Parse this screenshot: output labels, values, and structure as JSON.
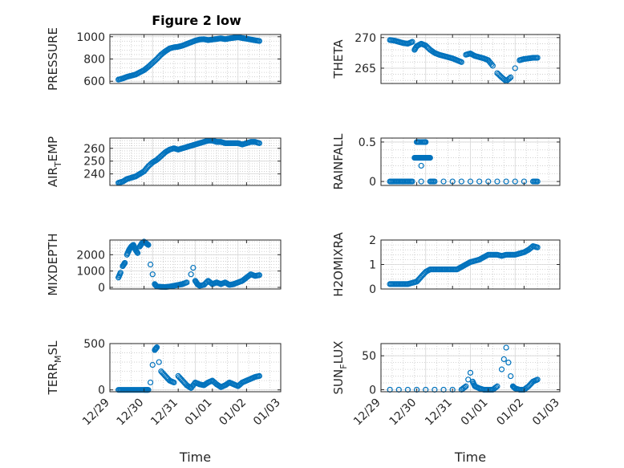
{
  "figure_title": "Figure 2 low",
  "colors": {
    "marker": "#0072BD",
    "axis": "#262626",
    "grid": "#c8c8c8"
  },
  "chart_data": [
    {
      "type": "scatter",
      "ylabel": "PRESSURE",
      "title": "Figure 2 low",
      "xlim": [
        0,
        4
      ],
      "ylim": [
        580,
        1020
      ],
      "yticks": [
        600,
        800,
        1000
      ],
      "grid": true,
      "xticklabels": [],
      "x": [
        0.2,
        0.3,
        0.4,
        0.5,
        0.6,
        0.7,
        0.8,
        0.9,
        1.0,
        1.1,
        1.2,
        1.3,
        1.4,
        1.5,
        1.6,
        1.7,
        1.8,
        1.9,
        2.0,
        2.1,
        2.2,
        2.3,
        2.4,
        2.5,
        2.6,
        2.7,
        2.8,
        2.9,
        3.0,
        3.1,
        3.2,
        3.3,
        3.4,
        3.5
      ],
      "y": [
        615,
        625,
        640,
        650,
        660,
        680,
        700,
        730,
        765,
        800,
        840,
        870,
        895,
        905,
        910,
        920,
        935,
        950,
        965,
        975,
        978,
        970,
        975,
        980,
        985,
        978,
        985,
        990,
        995,
        988,
        982,
        975,
        968,
        962
      ]
    },
    {
      "type": "scatter",
      "ylabel": "THETA",
      "xlim": [
        0,
        4
      ],
      "ylim": [
        262.5,
        270.5
      ],
      "yticks": [
        265,
        270
      ],
      "grid": true,
      "xticklabels": [],
      "x": [
        0.2,
        0.3,
        0.4,
        0.5,
        0.6,
        0.7,
        0.75,
        0.8,
        0.9,
        1.0,
        1.1,
        1.2,
        1.3,
        1.4,
        1.5,
        1.6,
        1.7,
        1.8,
        1.9,
        2.0,
        2.1,
        2.2,
        2.3,
        2.4,
        2.5,
        2.6,
        2.7,
        2.8,
        2.9,
        3.0,
        3.1,
        3.2,
        3.3,
        3.4,
        3.5
      ],
      "y": [
        269.6,
        269.5,
        269.3,
        269.1,
        269.0,
        269.3,
        268.0,
        268.6,
        269.0,
        268.7,
        268.0,
        267.5,
        267.2,
        267.0,
        266.8,
        266.6,
        266.3,
        266.0,
        267.2,
        267.4,
        267.0,
        266.8,
        266.6,
        266.3,
        265.4,
        264.2,
        263.5,
        262.9,
        263.5,
        265.0,
        266.3,
        266.5,
        266.6,
        266.7,
        266.7
      ]
    },
    {
      "type": "scatter",
      "ylabel": "AIR_TEMP",
      "xlim": [
        0,
        4
      ],
      "ylim": [
        231,
        268
      ],
      "yticks": [
        240,
        250,
        260
      ],
      "grid": true,
      "xticklabels": [],
      "x": [
        0.2,
        0.3,
        0.4,
        0.5,
        0.6,
        0.7,
        0.8,
        0.9,
        1.0,
        1.1,
        1.2,
        1.3,
        1.4,
        1.5,
        1.6,
        1.7,
        1.8,
        1.9,
        2.0,
        2.1,
        2.2,
        2.3,
        2.4,
        2.5,
        2.6,
        2.7,
        2.8,
        2.9,
        3.0,
        3.1,
        3.2,
        3.3,
        3.4,
        3.5
      ],
      "y": [
        233,
        234,
        236,
        237,
        238,
        240,
        242,
        246,
        249,
        251,
        254,
        257,
        259,
        260,
        259,
        260,
        261,
        262,
        263,
        264,
        265,
        266,
        266,
        265,
        265,
        264,
        264,
        264,
        264,
        263,
        264,
        265,
        265,
        264
      ]
    },
    {
      "type": "scatter",
      "ylabel": "RAINFALL",
      "xlim": [
        0,
        4
      ],
      "ylim": [
        -0.05,
        0.55
      ],
      "yticks": [
        0,
        0.5
      ],
      "grid": true,
      "xticklabels": [],
      "x": [
        0.2,
        0.3,
        0.4,
        0.5,
        0.6,
        0.7,
        0.75,
        0.8,
        0.85,
        0.9,
        0.95,
        1.0,
        1.05,
        1.1,
        0.8,
        0.85,
        0.95,
        1.0,
        0.9,
        0.9,
        1.1,
        1.2,
        1.4,
        1.6,
        1.8,
        2.0,
        2.2,
        2.4,
        2.6,
        2.8,
        3.0,
        3.2,
        3.4,
        3.5
      ],
      "y": [
        0,
        0,
        0,
        0,
        0,
        0,
        0.3,
        0.3,
        0.3,
        0.3,
        0.3,
        0.3,
        0.3,
        0.3,
        0.5,
        0.5,
        0.5,
        0.5,
        0.2,
        0,
        0,
        0,
        0,
        0,
        0,
        0,
        0,
        0,
        0,
        0,
        0,
        0,
        0,
        0
      ]
    },
    {
      "type": "scatter",
      "ylabel": "MIXDEPTH",
      "xlim": [
        0,
        4
      ],
      "ylim": [
        -100,
        2900
      ],
      "yticks": [
        0,
        1000,
        2000
      ],
      "grid": true,
      "xticklabels": [],
      "x": [
        0.2,
        0.25,
        0.3,
        0.35,
        0.4,
        0.45,
        0.5,
        0.55,
        0.6,
        0.65,
        0.7,
        0.75,
        0.8,
        0.85,
        0.9,
        0.95,
        1.0,
        1.05,
        1.1,
        1.2,
        1.3,
        1.4,
        1.5,
        1.6,
        1.7,
        1.8,
        1.9,
        1.95,
        2.0,
        2.05,
        2.1,
        2.2,
        2.3,
        2.4,
        2.5,
        2.6,
        2.7,
        2.8,
        2.9,
        3.0,
        3.1,
        3.2,
        3.3,
        3.4,
        3.5
      ],
      "y": [
        600,
        900,
        1300,
        1500,
        2000,
        2300,
        2500,
        2600,
        2300,
        2100,
        2500,
        2700,
        2800,
        2700,
        2600,
        1400,
        800,
        200,
        50,
        30,
        20,
        50,
        100,
        150,
        200,
        300,
        800,
        1200,
        400,
        200,
        100,
        150,
        400,
        200,
        300,
        200,
        300,
        150,
        200,
        300,
        400,
        600,
        800,
        700,
        750
      ]
    },
    {
      "type": "scatter",
      "ylabel": "H2OMIXRA",
      "xlim": [
        0,
        4
      ],
      "ylim": [
        0,
        2
      ],
      "yticks": [
        0,
        1,
        2
      ],
      "grid": true,
      "xticklabels": [],
      "x": [
        0.2,
        0.3,
        0.4,
        0.5,
        0.6,
        0.7,
        0.8,
        0.9,
        1.0,
        1.1,
        1.2,
        1.3,
        1.4,
        1.5,
        1.6,
        1.7,
        1.8,
        1.9,
        2.0,
        2.1,
        2.2,
        2.3,
        2.4,
        2.5,
        2.6,
        2.7,
        2.8,
        2.9,
        3.0,
        3.1,
        3.2,
        3.3,
        3.4,
        3.5
      ],
      "y": [
        0.2,
        0.2,
        0.2,
        0.2,
        0.2,
        0.25,
        0.3,
        0.5,
        0.7,
        0.8,
        0.8,
        0.8,
        0.8,
        0.8,
        0.8,
        0.8,
        0.9,
        1.0,
        1.1,
        1.15,
        1.2,
        1.3,
        1.4,
        1.4,
        1.4,
        1.35,
        1.4,
        1.4,
        1.4,
        1.45,
        1.5,
        1.6,
        1.75,
        1.7
      ]
    },
    {
      "type": "scatter",
      "ylabel": "TERR_MSL",
      "xlim": [
        0,
        4
      ],
      "ylim": [
        -20,
        500
      ],
      "yticks": [
        0,
        500
      ],
      "grid": true,
      "xticklabels": [
        "12/29",
        "12/30",
        "12/31",
        "01/01",
        "01/02",
        "01/03"
      ],
      "xlabel": "Time",
      "x": [
        0.2,
        0.3,
        0.4,
        0.5,
        0.6,
        0.7,
        0.8,
        0.85,
        0.9,
        0.95,
        1.0,
        1.05,
        1.1,
        1.15,
        1.2,
        1.3,
        1.4,
        1.5,
        1.6,
        1.7,
        1.8,
        1.9,
        2.0,
        2.1,
        2.2,
        2.3,
        2.4,
        2.5,
        2.6,
        2.7,
        2.8,
        2.9,
        3.0,
        3.1,
        3.2,
        3.3,
        3.4,
        3.5
      ],
      "y": [
        0,
        0,
        0,
        0,
        0,
        0,
        0,
        0,
        0,
        80,
        270,
        430,
        460,
        300,
        200,
        150,
        100,
        80,
        150,
        100,
        50,
        20,
        80,
        60,
        50,
        80,
        100,
        60,
        30,
        50,
        80,
        60,
        40,
        80,
        100,
        120,
        140,
        150
      ]
    },
    {
      "type": "scatter",
      "ylabel": "SUN_FLUX",
      "xlim": [
        0,
        4
      ],
      "ylim": [
        -3,
        68
      ],
      "yticks": [
        0,
        50
      ],
      "grid": true,
      "xticklabels": [
        "12/29",
        "12/30",
        "12/31",
        "01/01",
        "01/02",
        "01/03"
      ],
      "xlabel": "Time",
      "x": [
        0.2,
        0.4,
        0.6,
        0.8,
        1.0,
        1.2,
        1.4,
        1.6,
        1.8,
        1.9,
        1.95,
        2.0,
        2.05,
        2.1,
        2.2,
        2.3,
        2.4,
        2.5,
        2.6,
        2.7,
        2.75,
        2.8,
        2.85,
        2.9,
        2.95,
        3.0,
        3.1,
        3.2,
        3.3,
        3.4,
        3.5
      ],
      "y": [
        0,
        0,
        0,
        0,
        0,
        0,
        0,
        0,
        0,
        5,
        15,
        25,
        12,
        5,
        2,
        0,
        0,
        0,
        5,
        30,
        45,
        62,
        40,
        20,
        5,
        2,
        0,
        0,
        5,
        12,
        15
      ]
    }
  ]
}
